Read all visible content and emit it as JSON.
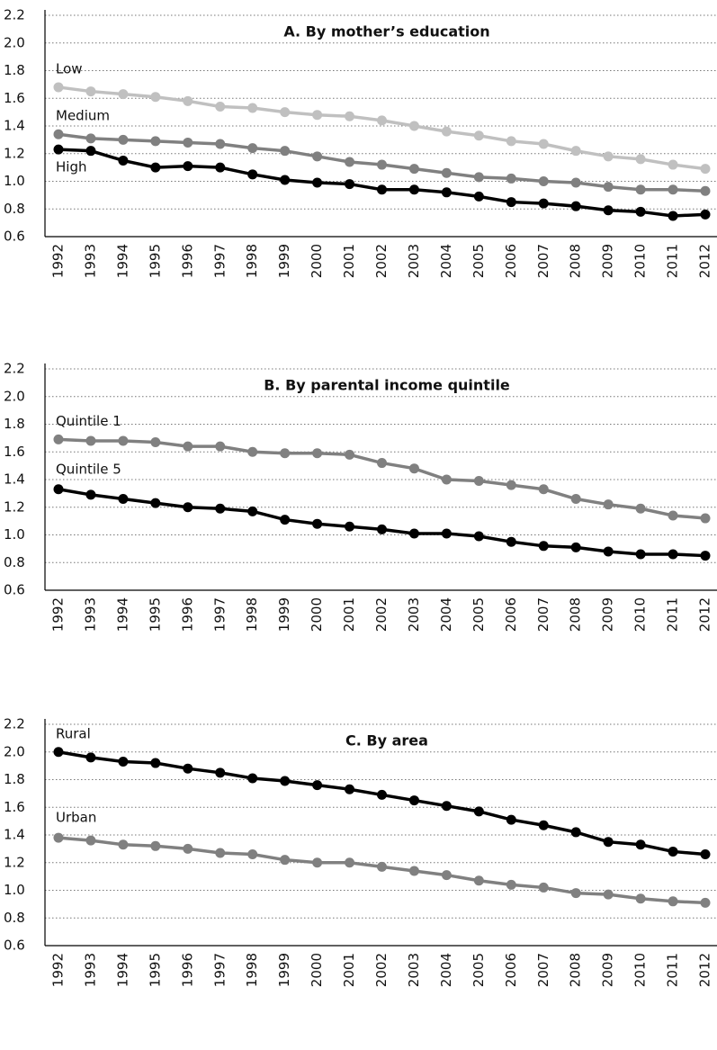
{
  "chart_data": [
    {
      "type": "line",
      "title": "A. By mother’s education",
      "categories": [
        "1992",
        "1993",
        "1994",
        "1995",
        "1996",
        "1997",
        "1998",
        "1999",
        "2000",
        "2001",
        "2002",
        "2003",
        "2004",
        "2005",
        "2006",
        "2007",
        "2008",
        "2009",
        "2010",
        "2011",
        "2012"
      ],
      "series": [
        {
          "name": "Low",
          "color": "#c0c0c0",
          "values": [
            1.68,
            1.65,
            1.63,
            1.61,
            1.58,
            1.54,
            1.53,
            1.5,
            1.48,
            1.47,
            1.44,
            1.4,
            1.36,
            1.33,
            1.29,
            1.27,
            1.22,
            1.18,
            1.16,
            1.12,
            1.09
          ]
        },
        {
          "name": "Medium",
          "color": "#808080",
          "values": [
            1.34,
            1.31,
            1.3,
            1.29,
            1.28,
            1.27,
            1.24,
            1.22,
            1.18,
            1.14,
            1.12,
            1.09,
            1.06,
            1.03,
            1.02,
            1.0,
            0.99,
            0.96,
            0.94,
            0.94,
            0.93
          ]
        },
        {
          "name": "High",
          "color": "#000000",
          "values": [
            1.23,
            1.22,
            1.15,
            1.1,
            1.11,
            1.1,
            1.05,
            1.01,
            0.99,
            0.98,
            0.94,
            0.94,
            0.92,
            0.89,
            0.85,
            0.84,
            0.82,
            0.79,
            0.78,
            0.75,
            0.76
          ]
        }
      ],
      "ylim": [
        0.6,
        2.2
      ],
      "yticks": [
        0.6,
        0.8,
        {
          "value": 1,
          "label": "1.0"
        },
        1.2,
        1.4,
        1.6,
        1.8,
        {
          "value": 2,
          "label": "2.0"
        },
        2.2
      ],
      "grid": true
    },
    {
      "type": "line",
      "title": "B. By parental income quintile",
      "categories": [
        "1992",
        "1993",
        "1994",
        "1995",
        "1996",
        "1997",
        "1998",
        "1999",
        "2000",
        "2001",
        "2002",
        "2003",
        "2004",
        "2005",
        "2006",
        "2007",
        "2008",
        "2009",
        "2010",
        "2011",
        "2012"
      ],
      "series": [
        {
          "name": "Quintile 1",
          "color": "#808080",
          "values": [
            1.69,
            1.68,
            1.68,
            1.67,
            1.64,
            1.64,
            1.6,
            1.59,
            1.59,
            1.58,
            1.52,
            1.48,
            1.4,
            1.39,
            1.36,
            1.33,
            1.26,
            1.22,
            1.19,
            1.14,
            1.12
          ]
        },
        {
          "name": "Quintile 5",
          "color": "#000000",
          "values": [
            1.33,
            1.29,
            1.26,
            1.23,
            1.2,
            1.19,
            1.17,
            1.11,
            1.08,
            1.06,
            1.04,
            1.01,
            1.01,
            0.99,
            0.95,
            0.92,
            0.91,
            0.88,
            0.86,
            0.86,
            0.85
          ]
        }
      ],
      "ylim": [
        0.6,
        2.2
      ],
      "yticks": [
        0.6,
        0.8,
        {
          "value": 1,
          "label": "1.0"
        },
        1.2,
        1.4,
        1.6,
        1.8,
        {
          "value": 2,
          "label": "2.0"
        },
        2.2
      ],
      "grid": true
    },
    {
      "type": "line",
      "title": "C. By area",
      "categories": [
        "1992",
        "1993",
        "1994",
        "1995",
        "1996",
        "1997",
        "1998",
        "1999",
        "2000",
        "2001",
        "2002",
        "2003",
        "2004",
        "2005",
        "2006",
        "2007",
        "2008",
        "2009",
        "2010",
        "2011",
        "2012"
      ],
      "series": [
        {
          "name": "Rural",
          "color": "#000000",
          "values": [
            2.0,
            1.96,
            1.93,
            1.92,
            1.88,
            1.85,
            1.81,
            1.79,
            1.76,
            1.73,
            1.69,
            1.65,
            1.61,
            1.57,
            1.51,
            1.47,
            1.42,
            1.35,
            1.33,
            1.28,
            1.26
          ]
        },
        {
          "name": "Urban",
          "color": "#808080",
          "values": [
            1.38,
            1.36,
            1.33,
            1.32,
            1.3,
            1.27,
            1.26,
            1.22,
            1.2,
            1.2,
            1.17,
            1.14,
            1.11,
            1.07,
            1.04,
            1.02,
            0.98,
            0.97,
            0.94,
            0.92,
            0.91
          ]
        }
      ],
      "ylim": [
        0.6,
        2.2
      ],
      "yticks": [
        0.6,
        0.8,
        {
          "value": 1,
          "label": "1.0"
        },
        1.2,
        1.4,
        1.6,
        1.8,
        {
          "value": 2,
          "label": "2.0"
        },
        2.2
      ],
      "grid": true
    }
  ]
}
